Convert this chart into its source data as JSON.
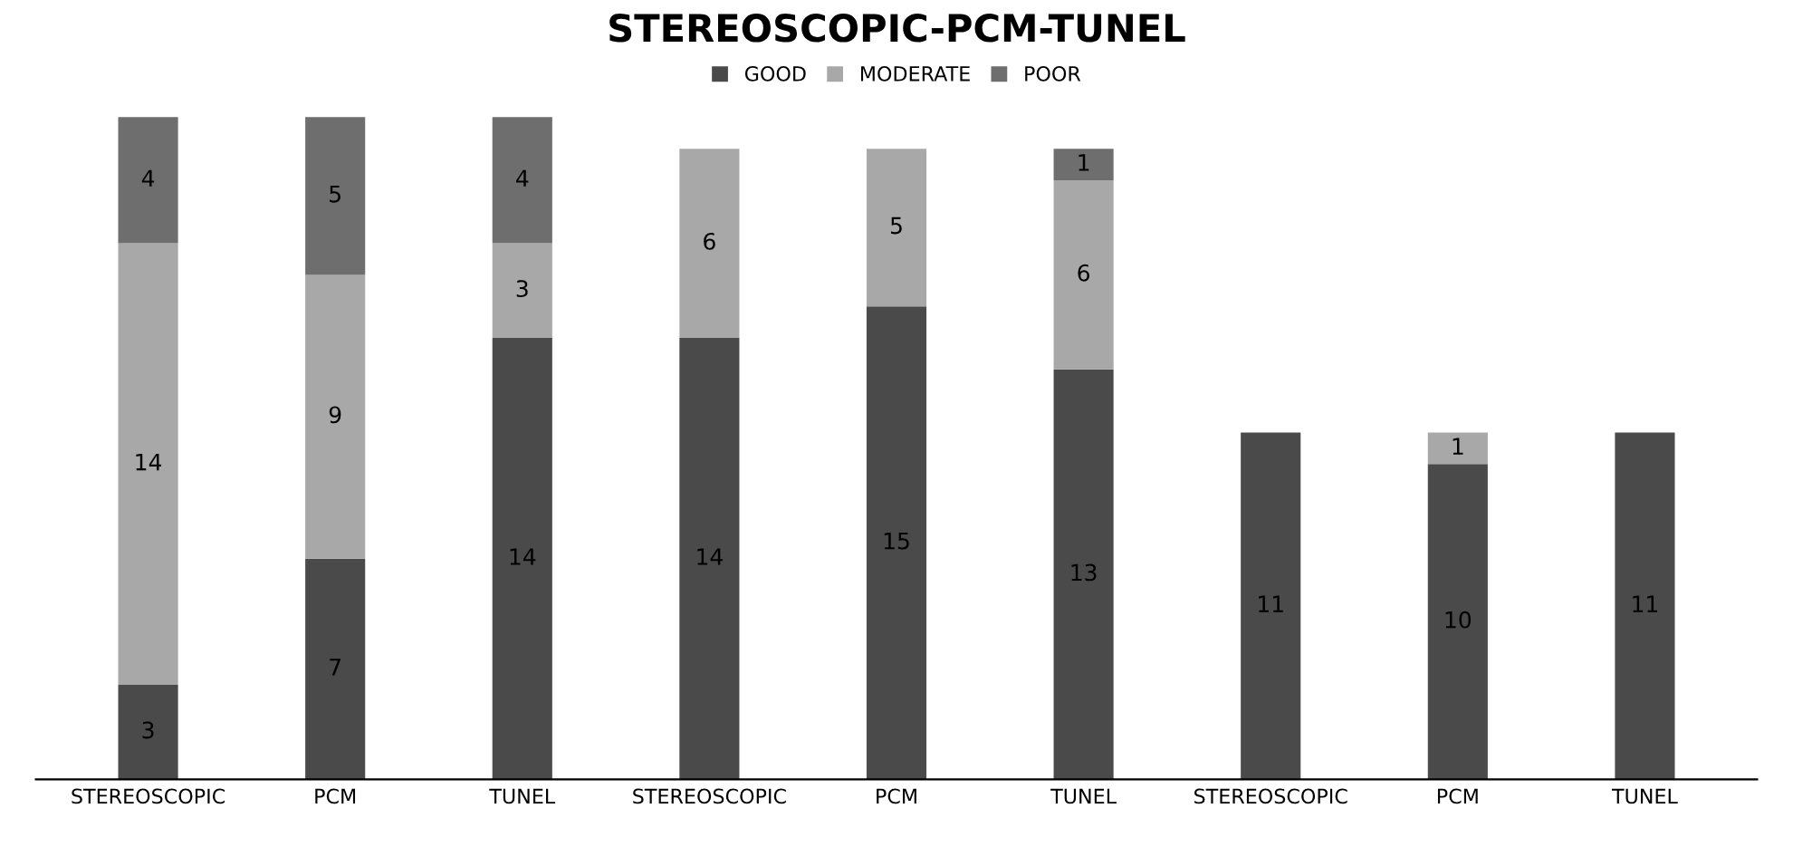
{
  "chart_data": {
    "type": "bar",
    "title": "STEREOSCOPIC-PCM-TUNEL",
    "stacked": true,
    "legend": "top",
    "data_labels": true,
    "categories": [
      "STEREOSCOPIC",
      "PCM",
      "TUNEL",
      "STEREOSCOPIC",
      "PCM",
      "TUNEL",
      "STEREOSCOPIC",
      "PCM",
      "TUNEL"
    ],
    "series": [
      {
        "name": "GOOD",
        "color": "#4a4a4a",
        "values": [
          3,
          7,
          14,
          14,
          15,
          13,
          11,
          10,
          11
        ]
      },
      {
        "name": "MODERATE",
        "color": "#a8a8a8",
        "values": [
          14,
          9,
          3,
          6,
          5,
          6,
          null,
          1,
          null
        ]
      },
      {
        "name": "POOR",
        "color": "#6e6e6e",
        "values": [
          4,
          5,
          4,
          null,
          null,
          1,
          null,
          null,
          null
        ]
      }
    ]
  }
}
